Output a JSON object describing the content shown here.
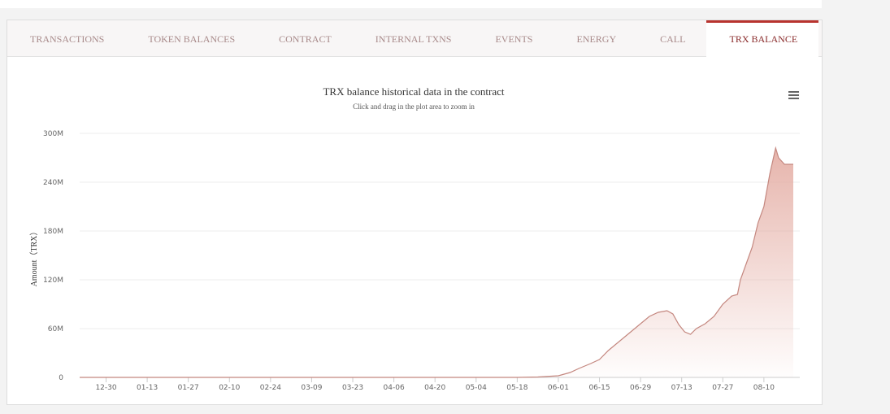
{
  "tabs": [
    "TRANSACTIONS",
    "TOKEN BALANCES",
    "CONTRACT",
    "INTERNAL TXNS",
    "EVENTS",
    "ENERGY",
    "CALL",
    "TRX BALANCE"
  ],
  "active_tab": 7,
  "chart_data": {
    "type": "area",
    "title": "TRX balance historical data in the contract",
    "subtitle": "Click and drag in the plot area to zoom in",
    "y_label": "Amount（TRX）",
    "x": [
      "12-21",
      "05-18",
      "05-25",
      "06-01",
      "06-05",
      "06-08",
      "06-12",
      "06-15",
      "06-18",
      "06-22",
      "06-26",
      "06-29",
      "07-02",
      "07-05",
      "07-08",
      "07-10",
      "07-12",
      "07-14",
      "07-16",
      "07-18",
      "07-21",
      "07-24",
      "07-27",
      "07-30",
      "08-01",
      "08-02",
      "08-04",
      "08-06",
      "08-08",
      "08-10",
      "08-12",
      "08-14",
      "08-15",
      "08-17",
      "08-20"
    ],
    "series": [
      {
        "name": "TRX balance",
        "color": "#c4877f",
        "values": [
          0,
          0,
          0.5,
          2,
          6,
          11,
          17,
          22,
          33,
          45,
          57,
          66,
          75,
          80,
          82,
          78,
          65,
          56,
          53,
          60,
          66,
          75,
          90,
          100,
          102,
          120,
          140,
          160,
          190,
          210,
          250,
          282,
          270,
          262,
          262
        ]
      }
    ],
    "xticks": [
      "12-30",
      "01-13",
      "01-27",
      "02-10",
      "02-24",
      "03-09",
      "03-23",
      "04-06",
      "04-20",
      "05-04",
      "05-18",
      "06-01",
      "06-15",
      "06-29",
      "07-13",
      "07-27",
      "08-10"
    ],
    "ylim": [
      0,
      300
    ],
    "yticks": [
      0,
      {
        "value": 60,
        "label": "60M"
      },
      {
        "value": 120,
        "label": "120M"
      },
      {
        "value": 180,
        "label": "180M"
      },
      {
        "value": 240,
        "label": "240M"
      },
      {
        "value": 300,
        "label": "300M"
      }
    ],
    "grid": true
  }
}
